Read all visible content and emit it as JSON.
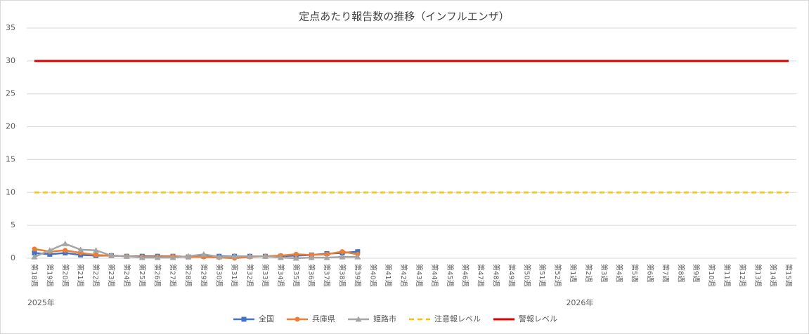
{
  "chart_data": {
    "type": "line",
    "title": "定点あたり報告数の推移（インフルエンザ）",
    "categories": [
      "第18週",
      "第19週",
      "第20週",
      "第21週",
      "第22週",
      "第23週",
      "第24週",
      "第25週",
      "第26週",
      "第27週",
      "第28週",
      "第29週",
      "第30週",
      "第31週",
      "第32週",
      "第33週",
      "第34週",
      "第35週",
      "第36週",
      "第37週",
      "第38週",
      "第39週",
      "第40週",
      "第41週",
      "第42週",
      "第43週",
      "第44週",
      "第45週",
      "第46週",
      "第47週",
      "第48週",
      "第49週",
      "第50週",
      "第51週",
      "第52週",
      "第1週",
      "第2週",
      "第3週",
      "第4週",
      "第5週",
      "第6週",
      "第7週",
      "第8週",
      "第9週",
      "第10週",
      "第11週",
      "第12週",
      "第13週",
      "第14週",
      "第15週"
    ],
    "year_groups": [
      {
        "label": "2025年",
        "count": 35
      },
      {
        "label": "2026年",
        "count": 15
      }
    ],
    "ylim": [
      0,
      35
    ],
    "yticks": [
      0,
      5,
      10,
      15,
      20,
      25,
      30,
      35
    ],
    "grid": true,
    "legend": "bottom",
    "series": [
      {
        "name": "全国",
        "color": "#4472c4",
        "marker": "square",
        "width": 2.5,
        "values": [
          0.8,
          0.6,
          0.8,
          0.5,
          0.4,
          0.4,
          0.3,
          0.3,
          0.3,
          0.3,
          0.2,
          0.3,
          0.3,
          0.3,
          0.3,
          0.3,
          0.3,
          0.4,
          0.5,
          0.7,
          0.8,
          1.0,
          null,
          null,
          null,
          null,
          null,
          null,
          null,
          null,
          null,
          null,
          null,
          null,
          null,
          null,
          null,
          null,
          null,
          null,
          null,
          null,
          null,
          null,
          null,
          null,
          null,
          null,
          null,
          null
        ]
      },
      {
        "name": "兵庫県",
        "color": "#ed7d31",
        "marker": "circle",
        "width": 2.5,
        "values": [
          1.4,
          1.0,
          1.2,
          0.8,
          0.5,
          0.4,
          0.3,
          0.2,
          0.2,
          0.3,
          0.2,
          0.2,
          0.1,
          0.0,
          0.2,
          0.3,
          0.4,
          0.6,
          0.5,
          0.6,
          1.0,
          0.6,
          null,
          null,
          null,
          null,
          null,
          null,
          null,
          null,
          null,
          null,
          null,
          null,
          null,
          null,
          null,
          null,
          null,
          null,
          null,
          null,
          null,
          null,
          null,
          null,
          null,
          null,
          null,
          null
        ]
      },
      {
        "name": "姫路市",
        "color": "#a5a5a5",
        "marker": "triangle",
        "width": 2.5,
        "values": [
          0.2,
          1.2,
          2.2,
          1.3,
          1.2,
          0.4,
          0.3,
          0.1,
          0.1,
          0.1,
          0.3,
          0.6,
          0.2,
          0.3,
          0.3,
          0.3,
          0.1,
          0.0,
          0.1,
          0.1,
          0.2,
          0.2,
          null,
          null,
          null,
          null,
          null,
          null,
          null,
          null,
          null,
          null,
          null,
          null,
          null,
          null,
          null,
          null,
          null,
          null,
          null,
          null,
          null,
          null,
          null,
          null,
          null,
          null,
          null,
          null
        ]
      },
      {
        "name": "注意報レベル",
        "color": "#ffc000",
        "dash": true,
        "width": 2.5,
        "values": [
          10,
          10,
          10,
          10,
          10,
          10,
          10,
          10,
          10,
          10,
          10,
          10,
          10,
          10,
          10,
          10,
          10,
          10,
          10,
          10,
          10,
          10,
          10,
          10,
          10,
          10,
          10,
          10,
          10,
          10,
          10,
          10,
          10,
          10,
          10,
          10,
          10,
          10,
          10,
          10,
          10,
          10,
          10,
          10,
          10,
          10,
          10,
          10,
          10,
          10
        ]
      },
      {
        "name": "警報レベル",
        "color": "#e00000",
        "width": 3,
        "values": [
          30,
          30,
          30,
          30,
          30,
          30,
          30,
          30,
          30,
          30,
          30,
          30,
          30,
          30,
          30,
          30,
          30,
          30,
          30,
          30,
          30,
          30,
          30,
          30,
          30,
          30,
          30,
          30,
          30,
          30,
          30,
          30,
          30,
          30,
          30,
          30,
          30,
          30,
          30,
          30,
          30,
          30,
          30,
          30,
          30,
          30,
          30,
          30,
          30,
          30
        ]
      }
    ]
  }
}
